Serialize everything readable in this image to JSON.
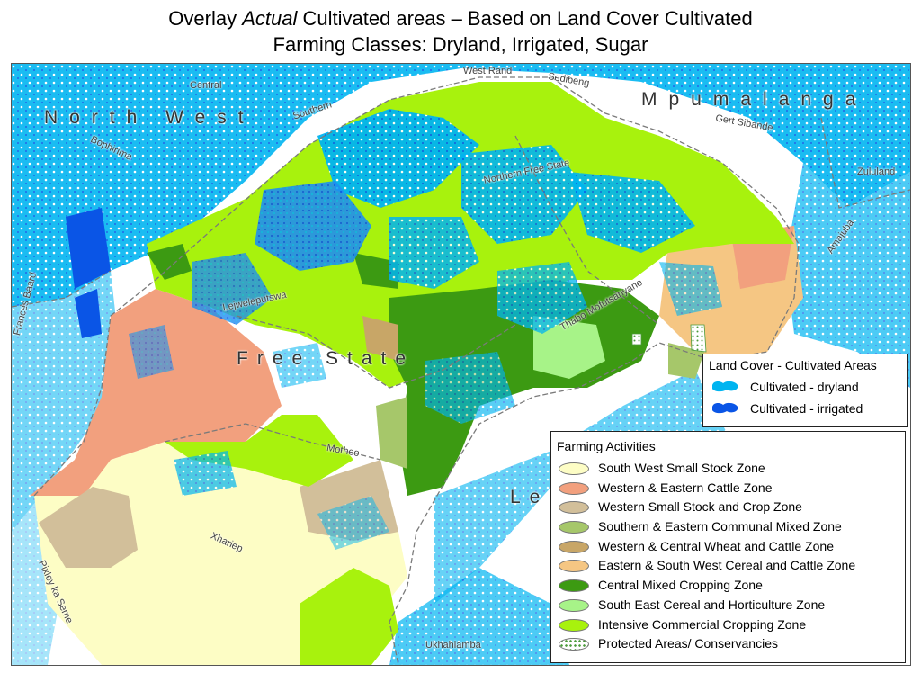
{
  "title": {
    "line1_pre": "Overlay ",
    "line1_italic": "Actual",
    "line1_post": " Cultivated areas – Based on Land Cover Cultivated",
    "line2": "Farming Classes: Dryland, Irrigated, Sugar"
  },
  "map": {
    "province_labels": {
      "north_west": "North West",
      "mpumalanga": "Mpumalanga",
      "free_state": "Free State",
      "lesotho_partial": "Le"
    },
    "district_labels": {
      "central": "Central",
      "west_rand": "West Rand",
      "sedibeng": "Sedibeng",
      "southern": "Southern",
      "bophirima": "Bophirima",
      "gert_sibande": "Gert Sibande",
      "northern_free_state": "Northern Free State",
      "zululand": "Zululand",
      "amajuba": "Amajuba",
      "lejweleputswa": "Lejweleputswa",
      "thabo_mofutsanyane": "Thabo Mofutsanyane",
      "frances_baard": "Frances Baard",
      "motheo": "Motheo",
      "xhariep": "Xhariep",
      "pixley_ka_seme": "Pixley ka Seme",
      "ukhahlamba": "Ukhahlamba"
    }
  },
  "land_cover_legend": {
    "title": "Land Cover - Cultivated Areas",
    "items": [
      {
        "label": "Cultivated - dryland",
        "color": "#00b4f0"
      },
      {
        "label": "Cultivated - irrigated",
        "color": "#0a55e6"
      }
    ]
  },
  "farming_legend": {
    "title": "Farming Activities",
    "items": [
      {
        "label": "South West Small Stock Zone",
        "color": "#fdfdc5"
      },
      {
        "label": "Western & Eastern Cattle Zone",
        "color": "#f2a07e"
      },
      {
        "label": "Western Small Stock and Crop Zone",
        "color": "#d2bf9a"
      },
      {
        "label": "Southern & Eastern Communal Mixed Zone",
        "color": "#a6c76a"
      },
      {
        "label": "Western & Central Wheat and Cattle Zone",
        "color": "#c8a667"
      },
      {
        "label": "Eastern & South West  Cereal and Cattle Zone",
        "color": "#f5c683"
      },
      {
        "label": "Central Mixed Cropping Zone",
        "color": "#3c9a12"
      },
      {
        "label": "South East Cereal and Horticulture Zone",
        "color": "#a7f388"
      },
      {
        "label": "Intensive Commercial Cropping Zone",
        "color": "#a8f20d"
      },
      {
        "label": "Protected Areas/ Conservancies",
        "color": "#ffffff",
        "pattern": "dotted"
      }
    ]
  }
}
